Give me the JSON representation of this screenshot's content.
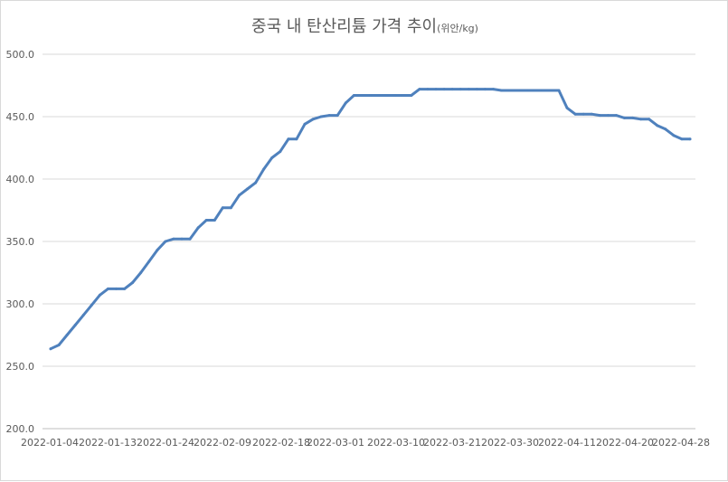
{
  "chart_data": {
    "type": "line",
    "title": "중국 내 탄산리튬 가격 추이",
    "unit": "(위안/kg)",
    "xlabel": "",
    "ylabel": "",
    "ylim": [
      200,
      500
    ],
    "y_ticks": [
      "200.0",
      "250.0",
      "300.0",
      "350.0",
      "400.0",
      "450.0",
      "500.0"
    ],
    "x_tick_labels": [
      "2022-01-04",
      "2022-01-13",
      "2022-01-24",
      "2022-02-09",
      "2022-02-18",
      "2022-03-01",
      "2022-03-10",
      "2022-03-21",
      "2022-03-30",
      "2022-04-11",
      "2022-04-20",
      "2022-04-28"
    ],
    "grid": true,
    "legend": "none",
    "colors": {
      "series": "#4f81bd",
      "grid": "#d9d9d9",
      "text": "#595959"
    },
    "series": [
      {
        "values": [
          264,
          267,
          275,
          283,
          291,
          299,
          307,
          312,
          312,
          312,
          317,
          325,
          334,
          343,
          350,
          352,
          352,
          352,
          361,
          367,
          367,
          377,
          377,
          387,
          392,
          397,
          408,
          417,
          422,
          432,
          432,
          444,
          448,
          450,
          451,
          451,
          461,
          467,
          467,
          467,
          467,
          467,
          467,
          467,
          467,
          472,
          472,
          472,
          472,
          472,
          472,
          472,
          472,
          472,
          472,
          471,
          471,
          471,
          471,
          471,
          471,
          471,
          471,
          457,
          452,
          452,
          452,
          451,
          451,
          451,
          449,
          449,
          448,
          448,
          443,
          440,
          435,
          432,
          432
        ]
      }
    ]
  }
}
